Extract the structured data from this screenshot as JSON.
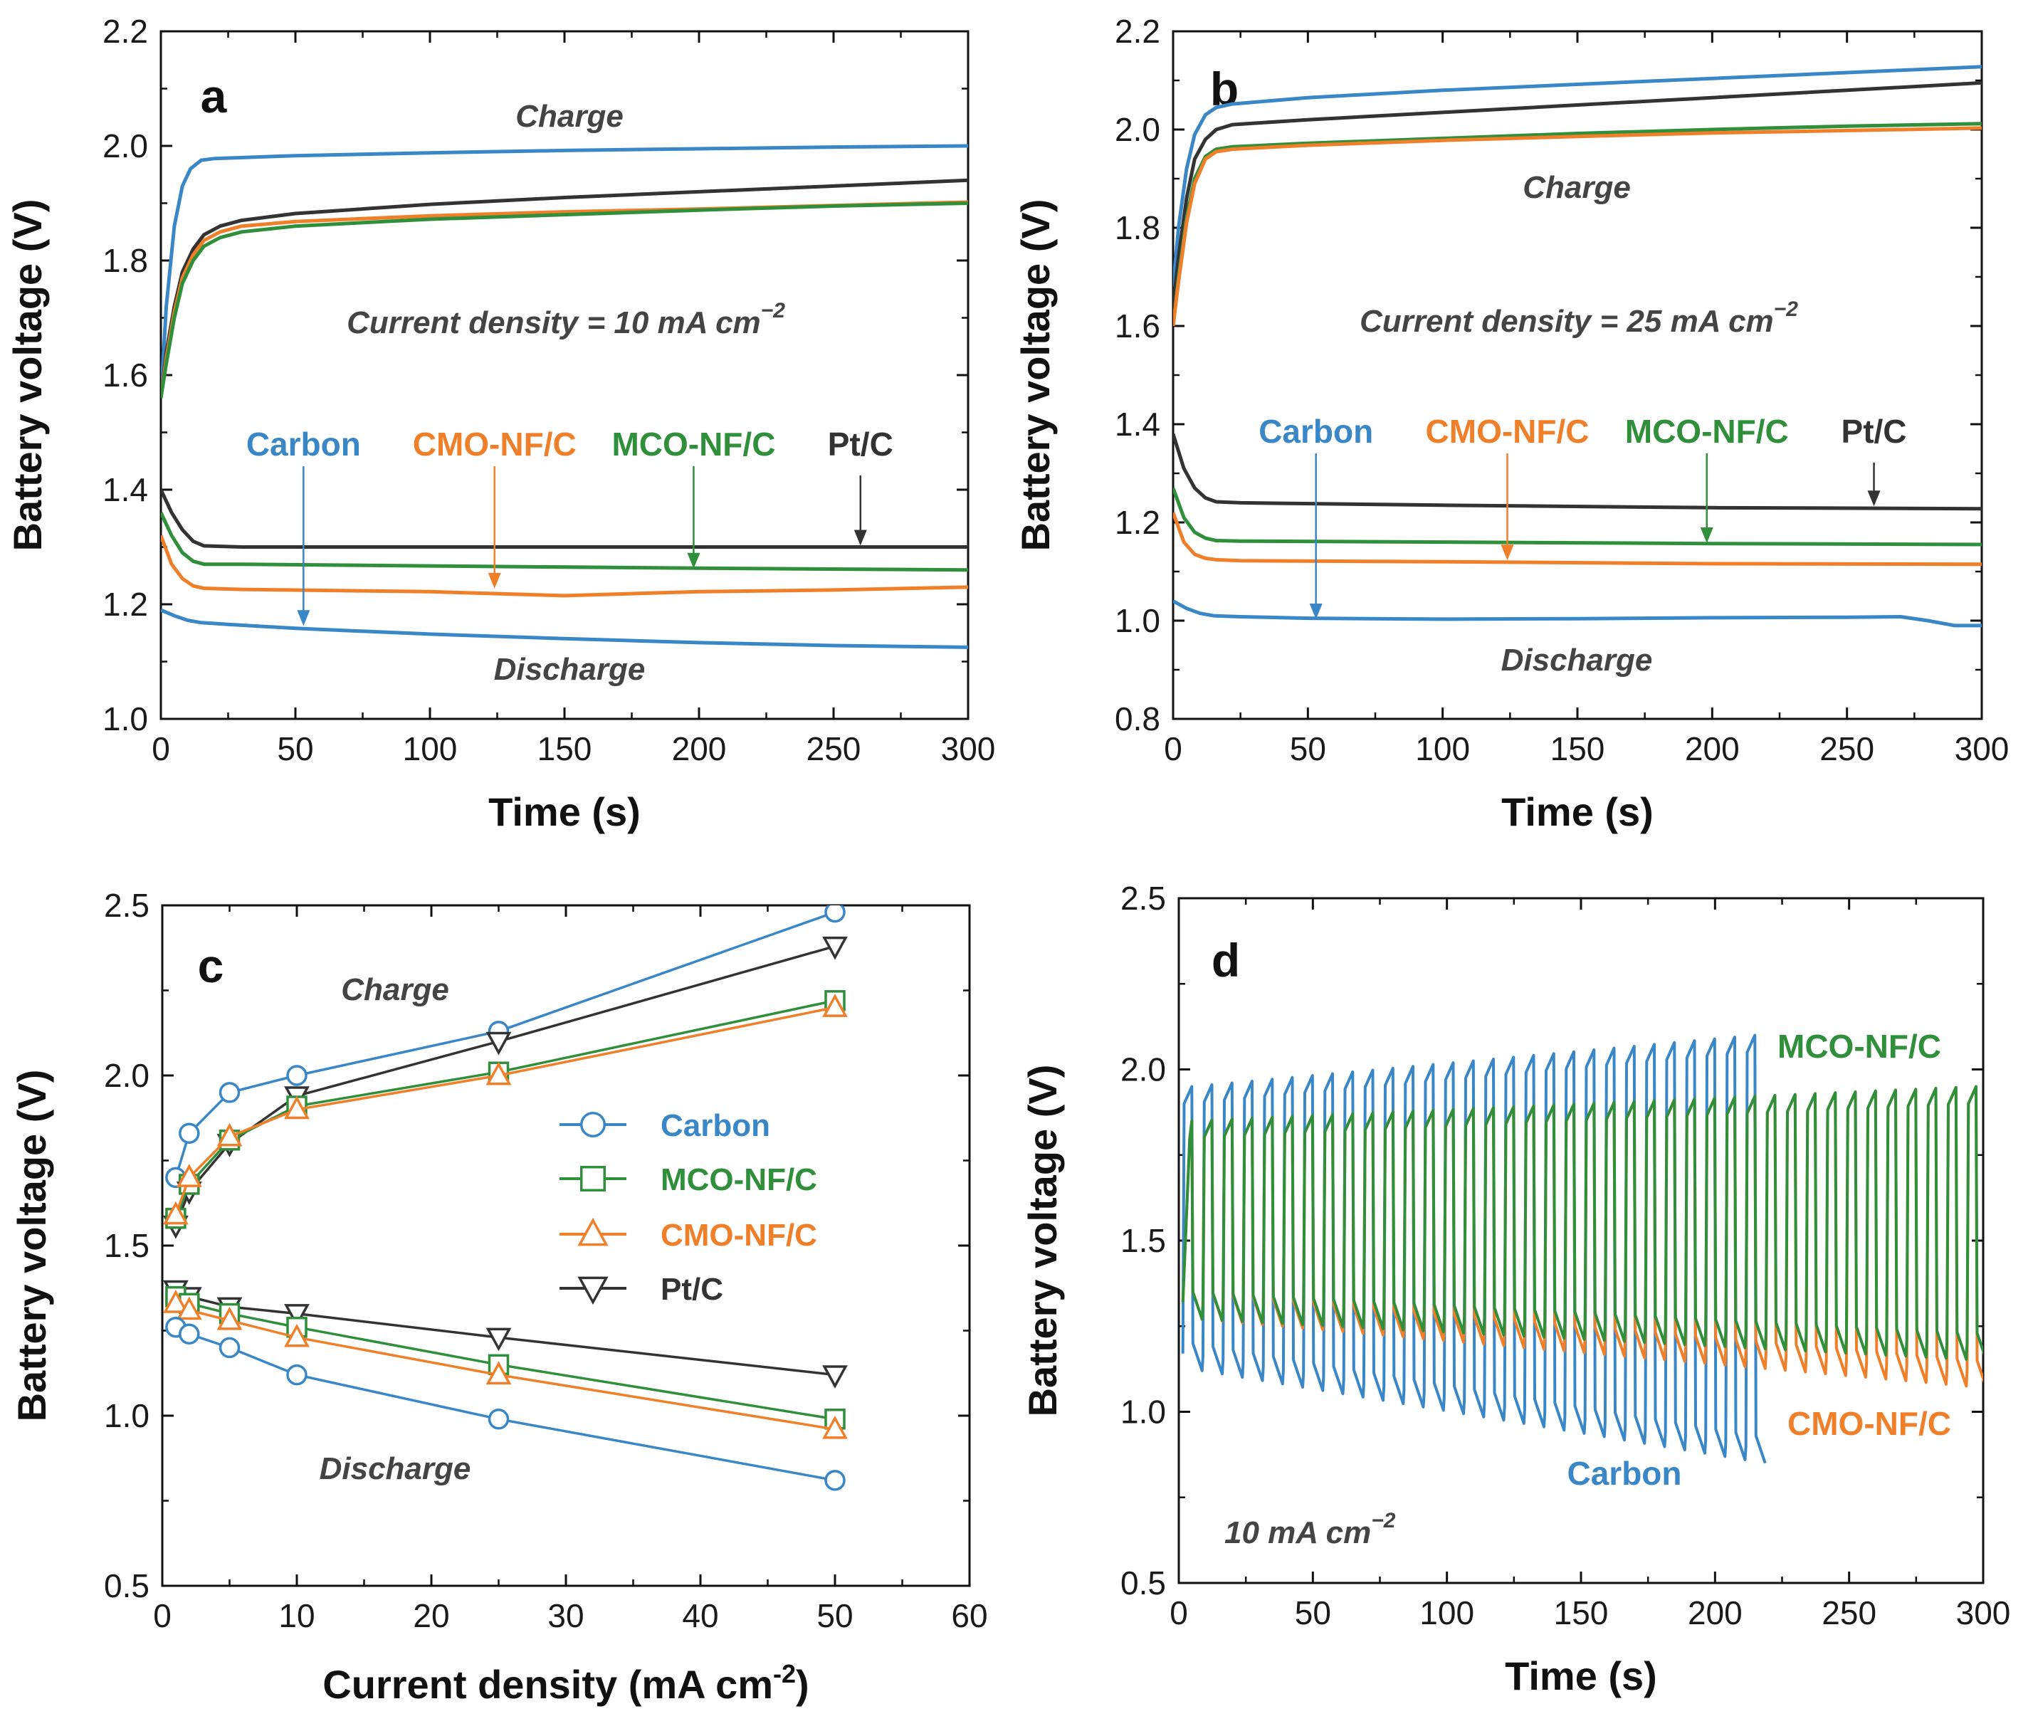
{
  "colors": {
    "Carbon": "#3a87c8",
    "CMO-NF/C": "#f07f2a",
    "MCO-NF/C": "#2f8f3a",
    "Pt/C": "#333333",
    "annotation": "#444444"
  },
  "chart_data": [
    {
      "type": "line",
      "panel_label": "a",
      "xlabel": "Time (s)",
      "ylabel": "Battery voltage (V)",
      "xlim": [
        0,
        300
      ],
      "ylim": [
        1.0,
        2.2
      ],
      "xticks": [
        "0",
        "50",
        "100",
        "150",
        "200",
        "250",
        "300"
      ],
      "yticks": [
        "1.0",
        "1.2",
        "1.4",
        "1.6",
        "1.8",
        "2.0",
        "2.2"
      ],
      "annotations": {
        "charge": "Charge",
        "discharge": "Discharge",
        "condition": "Current density = 10 mA cm",
        "condition_sup": "−2"
      },
      "arrow_labels": [
        {
          "name": "Carbon",
          "target_x": 53,
          "target_y": 1.16
        },
        {
          "name": "CMO-NF/C",
          "target_x": 124,
          "target_y": 1.225
        },
        {
          "name": "MCO-NF/C",
          "target_x": 198,
          "target_y": 1.26
        },
        {
          "name": "Pt/C",
          "target_x": 260,
          "target_y": 1.3
        }
      ],
      "series": [
        {
          "name": "Carbon",
          "role": "charge",
          "x": [
            0,
            2,
            5,
            8,
            11,
            15,
            20,
            50,
            100,
            150,
            200,
            250,
            300
          ],
          "y": [
            1.56,
            1.72,
            1.86,
            1.93,
            1.96,
            1.975,
            1.978,
            1.983,
            1.988,
            1.992,
            1.995,
            1.998,
            2.0
          ]
        },
        {
          "name": "Pt/C",
          "role": "charge",
          "x": [
            0,
            2,
            5,
            8,
            12,
            16,
            22,
            30,
            50,
            100,
            150,
            200,
            250,
            300
          ],
          "y": [
            1.56,
            1.64,
            1.72,
            1.78,
            1.82,
            1.845,
            1.86,
            1.87,
            1.882,
            1.898,
            1.91,
            1.92,
            1.93,
            1.94
          ]
        },
        {
          "name": "CMO-NF/C",
          "role": "charge",
          "x": [
            0,
            2,
            5,
            8,
            12,
            16,
            22,
            30,
            50,
            100,
            150,
            200,
            250,
            300
          ],
          "y": [
            1.56,
            1.63,
            1.71,
            1.77,
            1.81,
            1.835,
            1.85,
            1.86,
            1.868,
            1.878,
            1.885,
            1.89,
            1.896,
            1.902
          ]
        },
        {
          "name": "MCO-NF/C",
          "role": "charge",
          "x": [
            0,
            2,
            5,
            8,
            12,
            16,
            22,
            30,
            50,
            100,
            150,
            200,
            250,
            300
          ],
          "y": [
            1.56,
            1.62,
            1.7,
            1.76,
            1.8,
            1.825,
            1.84,
            1.85,
            1.86,
            1.872,
            1.88,
            1.888,
            1.895,
            1.9
          ]
        },
        {
          "name": "Pt/C",
          "role": "discharge",
          "x": [
            0,
            4,
            8,
            12,
            16,
            30,
            100,
            200,
            300
          ],
          "y": [
            1.4,
            1.36,
            1.33,
            1.31,
            1.302,
            1.3,
            1.3,
            1.3,
            1.3
          ]
        },
        {
          "name": "MCO-NF/C",
          "role": "discharge",
          "x": [
            0,
            4,
            8,
            12,
            16,
            30,
            100,
            200,
            300
          ],
          "y": [
            1.36,
            1.32,
            1.29,
            1.275,
            1.27,
            1.27,
            1.267,
            1.263,
            1.26
          ]
        },
        {
          "name": "CMO-NF/C",
          "role": "discharge",
          "x": [
            0,
            4,
            8,
            12,
            16,
            30,
            100,
            150,
            200,
            250,
            300
          ],
          "y": [
            1.32,
            1.27,
            1.245,
            1.232,
            1.228,
            1.226,
            1.222,
            1.215,
            1.222,
            1.225,
            1.23
          ]
        },
        {
          "name": "Carbon",
          "role": "discharge",
          "x": [
            0,
            5,
            10,
            15,
            25,
            50,
            100,
            150,
            200,
            250,
            300
          ],
          "y": [
            1.19,
            1.18,
            1.172,
            1.168,
            1.165,
            1.158,
            1.148,
            1.14,
            1.133,
            1.128,
            1.125
          ]
        }
      ]
    },
    {
      "type": "line",
      "panel_label": "b",
      "xlabel": "Time (s)",
      "ylabel": "Battery voltage (V)",
      "xlim": [
        0,
        300
      ],
      "ylim": [
        0.8,
        2.2
      ],
      "xticks": [
        "0",
        "50",
        "100",
        "150",
        "200",
        "250",
        "300"
      ],
      "yticks": [
        "0.8",
        "1.0",
        "1.2",
        "1.4",
        "1.6",
        "1.8",
        "2.0",
        "2.2"
      ],
      "annotations": {
        "charge": "Charge",
        "discharge": "Discharge",
        "condition": "Current density = 25 mA cm",
        "condition_sup": "−2"
      },
      "arrow_labels": [
        {
          "name": "Carbon",
          "target_x": 53,
          "target_y": 1.0
        },
        {
          "name": "CMO-NF/C",
          "target_x": 124,
          "target_y": 1.12
        },
        {
          "name": "MCO-NF/C",
          "target_x": 198,
          "target_y": 1.155
        },
        {
          "name": "Pt/C",
          "target_x": 260,
          "target_y": 1.23
        }
      ],
      "series": [
        {
          "name": "Carbon",
          "role": "charge",
          "x": [
            0,
            2,
            5,
            8,
            12,
            16,
            22,
            50,
            100,
            150,
            200,
            250,
            300
          ],
          "y": [
            1.68,
            1.8,
            1.92,
            1.99,
            2.03,
            2.045,
            2.052,
            2.065,
            2.08,
            2.092,
            2.104,
            2.116,
            2.128
          ]
        },
        {
          "name": "Pt/C",
          "role": "charge",
          "x": [
            0,
            2,
            5,
            8,
            12,
            16,
            22,
            50,
            100,
            150,
            200,
            250,
            300
          ],
          "y": [
            1.64,
            1.74,
            1.86,
            1.94,
            1.98,
            2.0,
            2.01,
            2.02,
            2.035,
            2.05,
            2.065,
            2.08,
            2.095
          ]
        },
        {
          "name": "MCO-NF/C",
          "role": "charge",
          "x": [
            0,
            2,
            5,
            8,
            12,
            16,
            22,
            50,
            100,
            150,
            200,
            250,
            300
          ],
          "y": [
            1.6,
            1.7,
            1.82,
            1.9,
            1.945,
            1.96,
            1.965,
            1.972,
            1.982,
            1.992,
            2.0,
            2.007,
            2.012
          ]
        },
        {
          "name": "CMO-NF/C",
          "role": "charge",
          "x": [
            0,
            2,
            5,
            8,
            12,
            16,
            22,
            50,
            100,
            150,
            200,
            250,
            300
          ],
          "y": [
            1.6,
            1.69,
            1.81,
            1.89,
            1.94,
            1.955,
            1.96,
            1.968,
            1.978,
            1.986,
            1.993,
            1.998,
            2.003
          ]
        },
        {
          "name": "Pt/C",
          "role": "discharge",
          "x": [
            0,
            4,
            8,
            12,
            16,
            25,
            100,
            200,
            300
          ],
          "y": [
            1.38,
            1.31,
            1.27,
            1.25,
            1.242,
            1.24,
            1.235,
            1.23,
            1.228
          ]
        },
        {
          "name": "MCO-NF/C",
          "role": "discharge",
          "x": [
            0,
            4,
            8,
            12,
            16,
            25,
            100,
            200,
            300
          ],
          "y": [
            1.27,
            1.21,
            1.18,
            1.168,
            1.163,
            1.162,
            1.16,
            1.157,
            1.155
          ]
        },
        {
          "name": "CMO-NF/C",
          "role": "discharge",
          "x": [
            0,
            4,
            8,
            12,
            16,
            25,
            100,
            200,
            300
          ],
          "y": [
            1.22,
            1.16,
            1.135,
            1.127,
            1.124,
            1.122,
            1.12,
            1.116,
            1.115
          ]
        },
        {
          "name": "Carbon",
          "role": "discharge",
          "x": [
            0,
            5,
            10,
            15,
            25,
            50,
            100,
            150,
            200,
            250,
            270,
            280,
            290,
            300
          ],
          "y": [
            1.04,
            1.025,
            1.015,
            1.01,
            1.008,
            1.005,
            1.003,
            1.004,
            1.006,
            1.007,
            1.008,
            1.0,
            0.99,
            0.99
          ]
        }
      ]
    },
    {
      "type": "line",
      "panel_label": "c",
      "xlabel": "Current density (mA cm",
      "xlabel_sup": "-2",
      "xlabel_end": ")",
      "ylabel": "Battery voltage (V)",
      "xlim": [
        0,
        60
      ],
      "ylim": [
        0.5,
        2.5
      ],
      "xticks": [
        "0",
        "10",
        "20",
        "30",
        "40",
        "50",
        "60"
      ],
      "yticks": [
        "0.5",
        "1.0",
        "1.5",
        "2.0",
        "2.5"
      ],
      "annotations": {
        "charge": "Charge",
        "discharge": "Discharge"
      },
      "legend": [
        "Carbon",
        "MCO-NF/C",
        "CMO-NF/C",
        "Pt/C"
      ],
      "series": [
        {
          "name": "Carbon",
          "marker": "circle",
          "role": "charge",
          "x": [
            1,
            2,
            5,
            10,
            25,
            50
          ],
          "y": [
            1.7,
            1.83,
            1.95,
            2.0,
            2.13,
            2.48
          ]
        },
        {
          "name": "Pt/C",
          "marker": "triangle-down",
          "role": "charge",
          "x": [
            1,
            2,
            5,
            10,
            25,
            50
          ],
          "y": [
            1.56,
            1.66,
            1.8,
            1.94,
            2.1,
            2.38
          ]
        },
        {
          "name": "MCO-NF/C",
          "marker": "square",
          "role": "charge",
          "x": [
            1,
            2,
            5,
            10,
            25,
            50
          ],
          "y": [
            1.58,
            1.68,
            1.81,
            1.91,
            2.01,
            2.22
          ]
        },
        {
          "name": "CMO-NF/C",
          "marker": "triangle-up",
          "role": "charge",
          "x": [
            1,
            2,
            5,
            10,
            25,
            50
          ],
          "y": [
            1.59,
            1.7,
            1.82,
            1.9,
            2.0,
            2.2
          ]
        },
        {
          "name": "Pt/C",
          "marker": "triangle-down",
          "role": "discharge",
          "x": [
            1,
            2,
            5,
            10,
            25,
            50
          ],
          "y": [
            1.37,
            1.35,
            1.32,
            1.3,
            1.23,
            1.12
          ]
        },
        {
          "name": "MCO-NF/C",
          "marker": "square",
          "role": "discharge",
          "x": [
            1,
            2,
            5,
            10,
            25,
            50
          ],
          "y": [
            1.35,
            1.33,
            1.3,
            1.26,
            1.15,
            0.99
          ]
        },
        {
          "name": "CMO-NF/C",
          "marker": "triangle-up",
          "role": "discharge",
          "x": [
            1,
            2,
            5,
            10,
            25,
            50
          ],
          "y": [
            1.33,
            1.31,
            1.28,
            1.23,
            1.12,
            0.96
          ]
        },
        {
          "name": "Carbon",
          "marker": "circle",
          "role": "discharge",
          "x": [
            1,
            2,
            5,
            10,
            25,
            50
          ],
          "y": [
            1.26,
            1.24,
            1.2,
            1.12,
            0.99,
            0.81
          ]
        }
      ]
    },
    {
      "type": "line",
      "panel_label": "d",
      "xlabel": "Time (s)",
      "ylabel": "Battery voltage (V)",
      "xlim": [
        0,
        300
      ],
      "ylim": [
        0.5,
        2.5
      ],
      "xticks": [
        "0",
        "50",
        "100",
        "150",
        "200",
        "250",
        "300"
      ],
      "yticks": [
        "0.5",
        "1.0",
        "1.5",
        "2.0",
        "2.5"
      ],
      "annotations": {
        "condition": "10 mA cm",
        "condition_sup": "−2"
      },
      "cycle_period_s": 7.5,
      "series": [
        {
          "name": "Carbon",
          "cycles_end_s": 222,
          "charge_start": 1.95,
          "charge_end": 2.1,
          "discharge_start": 1.12,
          "discharge_end": 0.85
        },
        {
          "name": "CMO-NF/C",
          "cycles_end_s": 300,
          "charge_start": 1.85,
          "charge_end": 1.95,
          "discharge_start": 1.27,
          "discharge_end": 1.07
        },
        {
          "name": "MCO-NF/C",
          "cycles_end_s": 300,
          "charge_start": 1.85,
          "charge_end": 1.95,
          "discharge_start": 1.27,
          "discharge_end": 1.15
        }
      ]
    }
  ]
}
